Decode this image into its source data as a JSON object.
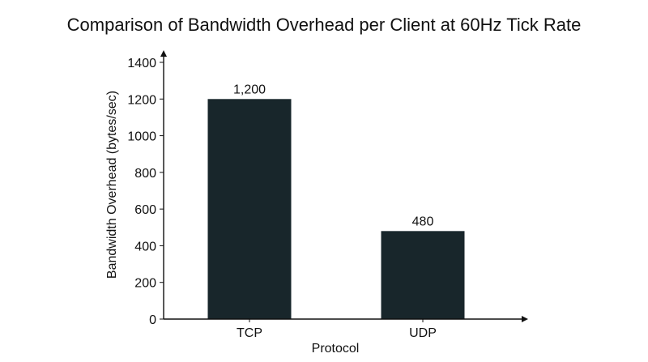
{
  "chart_data": {
    "type": "bar",
    "title": "Comparison of Bandwidth Overhead per Client at 60Hz Tick Rate",
    "xlabel": "Protocol",
    "ylabel": "Bandwidth Overhead (bytes/sec)",
    "categories": [
      "TCP",
      "UDP"
    ],
    "values": [
      1200,
      480
    ],
    "data_labels": [
      "1,200",
      "480"
    ],
    "ylim": [
      0,
      1400
    ],
    "yticks": [
      0,
      200,
      400,
      600,
      800,
      1000,
      1200,
      1400
    ],
    "grid": false,
    "legend": "none",
    "bar_color": "#18262b",
    "axis_color": "#111111"
  }
}
